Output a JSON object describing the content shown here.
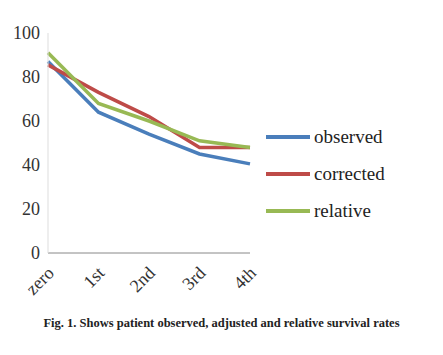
{
  "chart_data": {
    "type": "line",
    "title": "Fig. 1. Shows patient observed, adjusted and relative survival rates",
    "categories": [
      "zero",
      "1st",
      "2nd",
      "3rd",
      "4th"
    ],
    "series": [
      {
        "name": "observed",
        "color": "#4a7ebb",
        "values": [
          87,
          64,
          54,
          45,
          40.5
        ]
      },
      {
        "name": "corrected",
        "color": "#be4b48",
        "values": [
          85.5,
          73,
          62,
          48,
          48
        ]
      },
      {
        "name": "relative",
        "color": "#98b954",
        "values": [
          91,
          68,
          60,
          51,
          48
        ]
      }
    ],
    "ylim": [
      0,
      100
    ],
    "yticks": [
      0,
      20,
      40,
      60,
      80,
      100
    ],
    "grid": false,
    "legend": "right"
  }
}
